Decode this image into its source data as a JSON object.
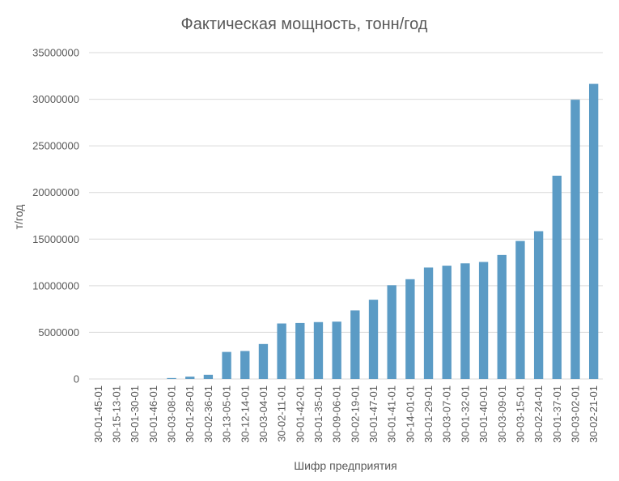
{
  "chart_data": {
    "type": "bar",
    "title": "Фактическая мощность, тонн/год",
    "xlabel": "Шифр предприятия",
    "ylabel": "т/год",
    "ylim": [
      0,
      35000000
    ],
    "yticks": [
      0,
      5000000,
      10000000,
      15000000,
      20000000,
      25000000,
      30000000,
      35000000
    ],
    "ytick_labels": [
      "0",
      "5000000",
      "10000000",
      "15000000",
      "20000000",
      "25000000",
      "30000000",
      "35000000"
    ],
    "grid": true,
    "legend": "none",
    "bar_color": "#5b9bc5",
    "categories": [
      "30-01-45-01",
      "30-15-13-01",
      "30-01-30-01",
      "30-01-46-01",
      "30-03-08-01",
      "30-01-28-01",
      "30-02-36-01",
      "30-13-05-01",
      "30-12-14-01",
      "30-03-04-01",
      "30-02-11-01",
      "30-01-42-01",
      "30-01-35-01",
      "30-09-06-01",
      "30-02-19-01",
      "30-01-47-01",
      "30-01-41-01",
      "30-14-01-01",
      "30-01-29-01",
      "30-03-07-01",
      "30-01-32-01",
      "30-01-40-01",
      "30-03-09-01",
      "30-03-15-01",
      "30-02-24-01",
      "30-01-37-01",
      "30-03-02-01",
      "30-02-21-01"
    ],
    "values": [
      0,
      0,
      0,
      0,
      100000,
      250000,
      450000,
      2900000,
      3000000,
      3750000,
      5950000,
      6000000,
      6100000,
      6150000,
      7350000,
      8500000,
      10050000,
      10700000,
      11950000,
      12150000,
      12400000,
      12550000,
      13300000,
      14800000,
      15850000,
      21800000,
      29950000,
      31650000
    ]
  }
}
